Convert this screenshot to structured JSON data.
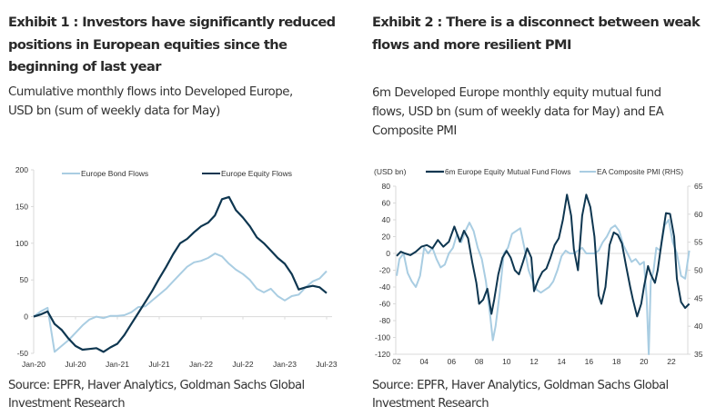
{
  "exhibit1": {
    "title": "Exhibit 1 : Investors have significantly reduced positions in European equities since the beginning of last year",
    "title_lines": [
      "Exhibit 1 : Investors have significantly reduced",
      "positions in European equities since the",
      "beginning of last year"
    ],
    "subtitle_lines": [
      "Cumulative monthly flows into Developed Europe,",
      "USD bn (sum of weekly data for May)"
    ],
    "source_lines": [
      "Source: EPFR, Haver Analytics, Goldman Sachs Global",
      "Investment Research"
    ]
  },
  "exhibit2": {
    "title": "Exhibit 2 : There is a disconnect between weak flows and more resilient PMI",
    "title_lines": [
      "Exhibit 2 : There is a disconnect between weak",
      "flows and more resilient PMI"
    ],
    "subtitle_lines": [
      "6m Developed Europe monthly equity mutual fund",
      "flows, USD bn (sum of weekly data for May) and EA",
      "Composite PMI"
    ],
    "source_lines": [
      "Source: EPFR, Haver Analytics, Goldman Sachs Global",
      "Investment Research"
    ]
  },
  "colors": {
    "dark": "#0e3650",
    "light": "#a9cde2",
    "axis": "#d9d9d9"
  },
  "chart_data": [
    {
      "type": "line",
      "title": "Cumulative monthly flows into Developed Europe, USD bn",
      "xlabel": "",
      "ylabel": "",
      "ylim": [
        -50,
        200
      ],
      "yticks": [
        -50,
        0,
        50,
        100,
        150,
        200
      ],
      "xtick_labels": [
        "Jan-20",
        "Jul-20",
        "Jan-21",
        "Jul-21",
        "Jan-22",
        "Jul-22",
        "Jan-23",
        "Jul-23"
      ],
      "x_start": "Jan-20",
      "x_step": "month",
      "legend": "top",
      "grid": false,
      "series": [
        {
          "name": "Europe Bond Flows",
          "color": "#a9cde2",
          "values": [
            0,
            7,
            12,
            -48,
            -40,
            -32,
            -22,
            -12,
            -4,
            0,
            -2,
            1,
            1,
            2,
            6,
            13,
            14,
            22,
            30,
            38,
            48,
            58,
            68,
            74,
            76,
            80,
            86,
            82,
            72,
            64,
            58,
            50,
            38,
            33,
            38,
            28,
            22,
            28,
            30,
            40,
            48,
            52,
            62,
            74,
            76
          ]
        },
        {
          "name": "Europe Equity Flows",
          "color": "#0e3650",
          "values": [
            0,
            3,
            7,
            -10,
            -18,
            -30,
            -40,
            -45,
            -44,
            -43,
            -48,
            -42,
            -37,
            -25,
            -10,
            5,
            20,
            35,
            52,
            68,
            85,
            100,
            106,
            115,
            123,
            128,
            138,
            160,
            163,
            145,
            135,
            123,
            108,
            100,
            90,
            80,
            72,
            58,
            37,
            40,
            42,
            40,
            32,
            26,
            26
          ]
        }
      ]
    },
    {
      "type": "line",
      "title": "6m Developed Europe monthly equity mutual fund flows and EA Composite PMI",
      "ylabel": "(USD bn)",
      "ylim": [
        -120,
        80
      ],
      "yticks": [
        -120,
        -100,
        -80,
        -60,
        -40,
        -20,
        0,
        20,
        40,
        60,
        80
      ],
      "y2lim": [
        35,
        65
      ],
      "y2ticks": [
        35,
        40,
        45,
        50,
        55,
        60,
        65
      ],
      "xtick_labels": [
        "02",
        "04",
        "06",
        "08",
        "10",
        "12",
        "14",
        "16",
        "18",
        "20",
        "22"
      ],
      "x_range": [
        2002,
        2023.5
      ],
      "legend": "top",
      "grid": false,
      "series": [
        {
          "name": "6m Europe Equity Mutual Fund Flows",
          "axis": "left",
          "color": "#0e3650",
          "x": [
            2002.0,
            2002.3,
            2002.6,
            2003.0,
            2003.4,
            2003.8,
            2004.2,
            2004.6,
            2005.0,
            2005.4,
            2005.8,
            2006.2,
            2006.6,
            2006.9,
            2007.2,
            2007.5,
            2007.8,
            2008.0,
            2008.3,
            2008.6,
            2008.9,
            2009.1,
            2009.4,
            2009.7,
            2010.0,
            2010.3,
            2010.6,
            2010.9,
            2011.2,
            2011.5,
            2011.8,
            2012.0,
            2012.3,
            2012.6,
            2012.9,
            2013.2,
            2013.5,
            2013.8,
            2014.1,
            2014.4,
            2014.7,
            2014.9,
            2015.2,
            2015.5,
            2015.8,
            2016.1,
            2016.4,
            2016.7,
            2016.9,
            2017.2,
            2017.5,
            2017.8,
            2018.1,
            2018.4,
            2018.7,
            2019.0,
            2019.2,
            2019.5,
            2019.8,
            2020.0,
            2020.3,
            2020.5,
            2020.8,
            2021.0,
            2021.3,
            2021.6,
            2021.9,
            2022.2,
            2022.4,
            2022.7,
            2023.0,
            2023.3
          ],
          "values": [
            -3,
            2,
            0,
            -2,
            2,
            8,
            10,
            6,
            16,
            8,
            14,
            32,
            14,
            27,
            18,
            -10,
            -35,
            -60,
            -55,
            -42,
            -72,
            -55,
            -25,
            -5,
            3,
            -5,
            -20,
            -25,
            -10,
            6,
            -5,
            -45,
            -32,
            -22,
            -18,
            -5,
            10,
            18,
            40,
            70,
            45,
            5,
            -20,
            45,
            70,
            55,
            20,
            -50,
            -60,
            -40,
            10,
            25,
            22,
            12,
            -15,
            -40,
            -55,
            -75,
            -60,
            -40,
            -15,
            -25,
            -35,
            -20,
            15,
            48,
            47,
            20,
            -30,
            -58,
            -65,
            -60
          ]
        },
        {
          "name": "EA Composite PMI (RHS)",
          "axis": "right",
          "color": "#a9cde2",
          "x": [
            2002.0,
            2002.2,
            2002.5,
            2002.8,
            2003.1,
            2003.4,
            2003.7,
            2004.0,
            2004.3,
            2004.6,
            2004.9,
            2005.2,
            2005.5,
            2005.8,
            2006.1,
            2006.4,
            2006.7,
            2007.0,
            2007.3,
            2007.6,
            2007.9,
            2008.2,
            2008.5,
            2008.8,
            2009.0,
            2009.2,
            2009.5,
            2009.8,
            2010.1,
            2010.4,
            2010.7,
            2011.0,
            2011.3,
            2011.6,
            2011.9,
            2012.2,
            2012.5,
            2012.8,
            2013.1,
            2013.4,
            2013.7,
            2014.0,
            2014.3,
            2014.6,
            2014.9,
            2015.2,
            2015.5,
            2015.8,
            2016.1,
            2016.4,
            2016.7,
            2017.0,
            2017.3,
            2017.6,
            2017.9,
            2018.2,
            2018.5,
            2018.8,
            2019.1,
            2019.4,
            2019.7,
            2020.0,
            2020.2,
            2020.35,
            2020.5,
            2020.7,
            2020.9,
            2021.2,
            2021.5,
            2021.8,
            2022.1,
            2022.4,
            2022.7,
            2023.0,
            2023.3
          ],
          "values": [
            49,
            52,
            53,
            49.5,
            48,
            47,
            49,
            54,
            53,
            54,
            52,
            50.5,
            51,
            53,
            54,
            56.5,
            55,
            57,
            58.5,
            57,
            54,
            52,
            48,
            42,
            37.5,
            40,
            46,
            53,
            54,
            56.5,
            57,
            57.5,
            54,
            50,
            48,
            46.5,
            46,
            46.5,
            47,
            48,
            50,
            52.5,
            53.5,
            53,
            53,
            53.5,
            54,
            53,
            53,
            53,
            53.5,
            55,
            56,
            57.5,
            58,
            57,
            54.5,
            53,
            51.5,
            52,
            51,
            51.5,
            45,
            13.6,
            48,
            50,
            54,
            53.5,
            58,
            59,
            55,
            53,
            49,
            48.5,
            53.5
          ]
        }
      ]
    }
  ]
}
